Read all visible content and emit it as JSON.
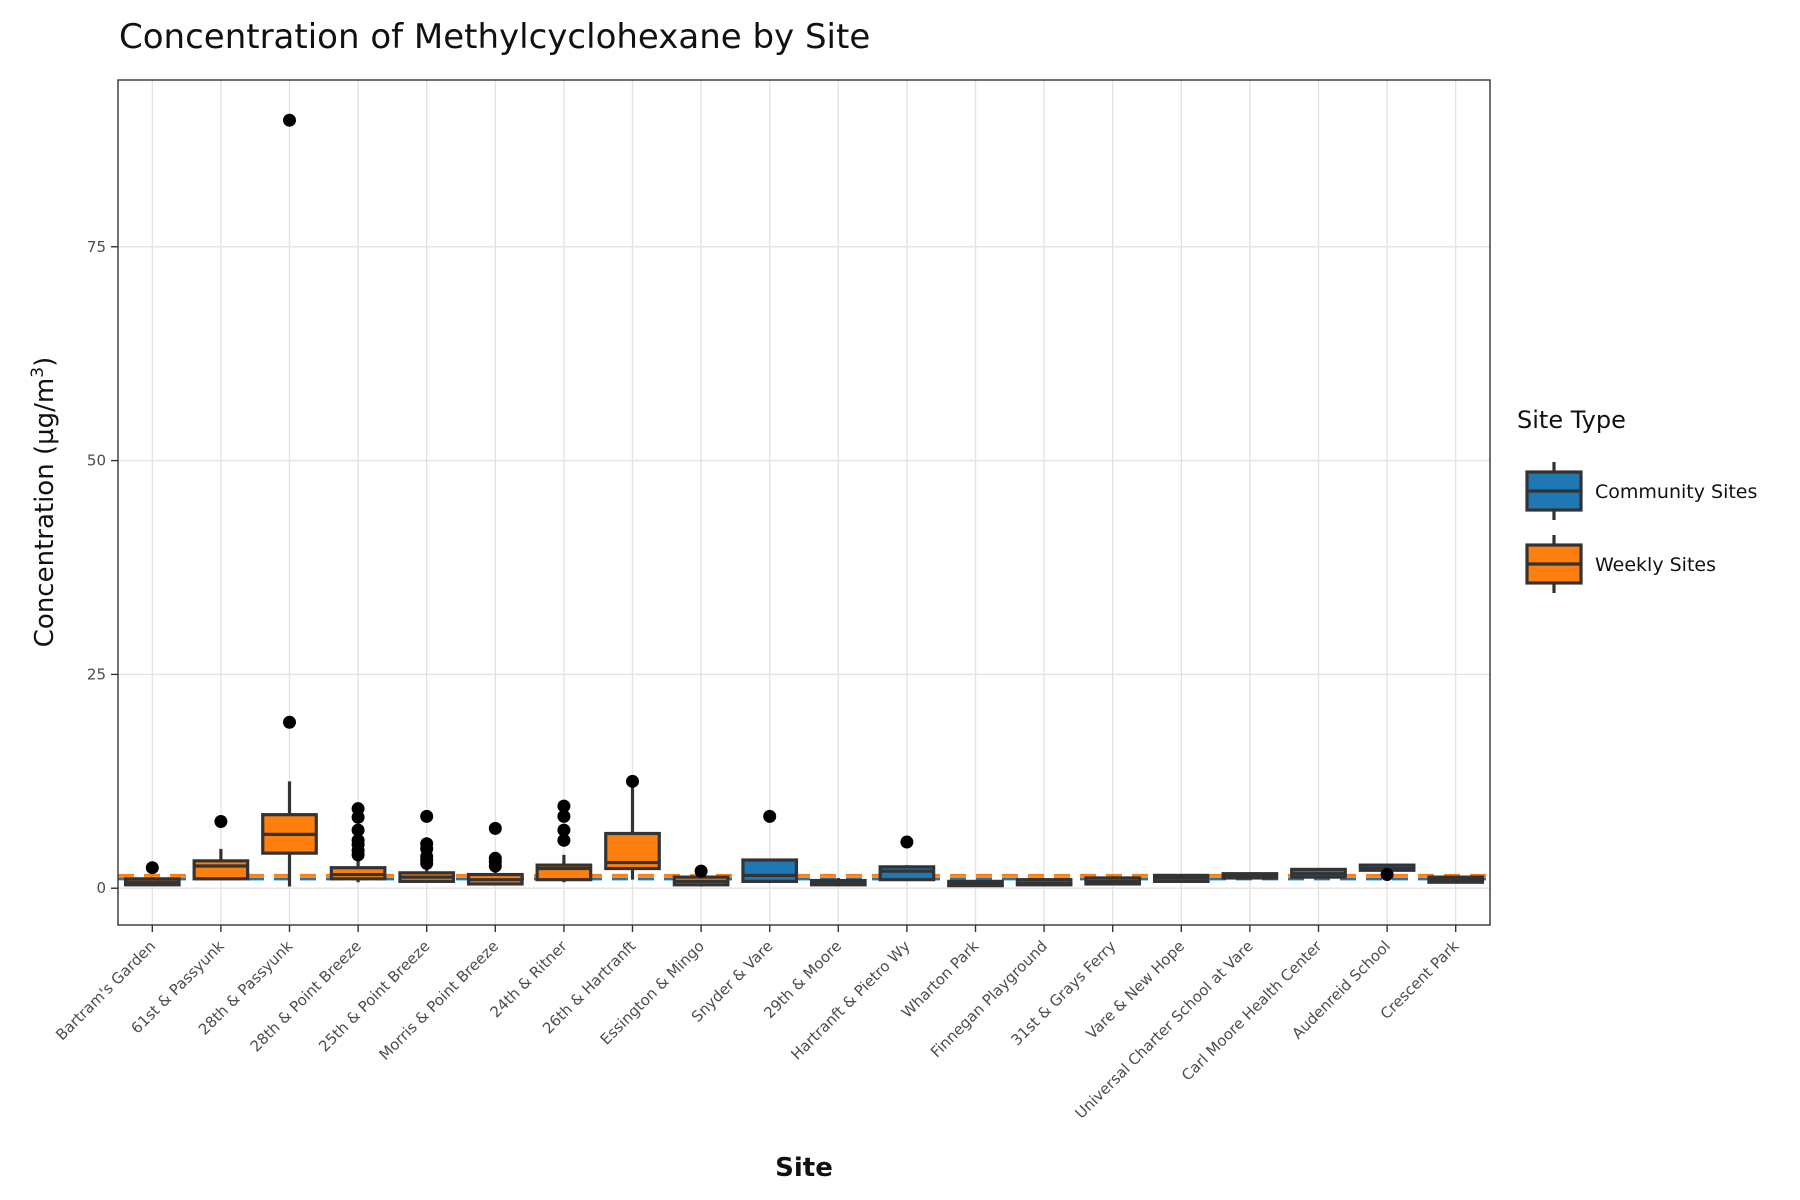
{
  "chart_data": {
    "type": "box",
    "title": "Concentration of Methylcyclohexane by Site",
    "xlabel": "Site",
    "ylabel_main": "Concentration (µg/m",
    "ylabel_sup": "3",
    "ylabel_close": ")",
    "ylim": [
      -4.3,
      94.5
    ],
    "yticks": [
      0,
      25,
      50,
      75
    ],
    "grid": true,
    "legend": {
      "title": "Site Type",
      "placement": "right",
      "entries": [
        {
          "label": "Community Sites",
          "color": "#1f77b4"
        },
        {
          "label": "Weekly Sites",
          "color": "#ff7f0e"
        }
      ]
    },
    "reference_lines": [
      {
        "series": "Weekly Sites",
        "value": 1.5,
        "color": "#ff7f0e",
        "style": "dashed"
      },
      {
        "series": "Community Sites",
        "value": 1.1,
        "color": "#1f77b4",
        "style": "dashed"
      }
    ],
    "categories": [
      "Bartram's Garden",
      "61st & Passyunk",
      "28th & Passyunk",
      "28th & Point Breeze",
      "25th & Point Breeze",
      "Morris & Point Breeze",
      "24th & Ritner",
      "26th & Hartranft",
      "Essington & Mingo",
      "Snyder & Vare",
      "29th & Moore",
      "Hartranft & Pietro Wy",
      "Wharton Park",
      "Finnegan Playground",
      "31st & Grays Ferry",
      "Vare & New Hope",
      "Universal Charter School at Vare",
      "Carl Moore Health Center",
      "Audenreid School",
      "Crescent Park"
    ],
    "boxes": [
      {
        "site": "Bartram's Garden",
        "type": "Weekly Sites",
        "min": 0.3,
        "q1": 0.4,
        "median": 0.7,
        "q3": 1.1,
        "max": 1.3,
        "outliers": [
          2.4
        ]
      },
      {
        "site": "61st & Passyunk",
        "type": "Weekly Sites",
        "min": 1.0,
        "q1": 1.1,
        "median": 2.6,
        "q3": 3.2,
        "max": 4.6,
        "outliers": [
          7.8
        ]
      },
      {
        "site": "28th & Passyunk",
        "type": "Weekly Sites",
        "min": 0.2,
        "q1": 4.1,
        "median": 6.3,
        "q3": 8.6,
        "max": 12.5,
        "outliers": [
          19.4,
          89.8
        ]
      },
      {
        "site": "28th & Point Breeze",
        "type": "Weekly Sites",
        "min": 0.7,
        "q1": 1.1,
        "median": 1.6,
        "q3": 2.4,
        "max": 3.2,
        "outliers": [
          3.9,
          4.4,
          5.1,
          5.6,
          6.8,
          8.3,
          9.3
        ]
      },
      {
        "site": "25th & Point Breeze",
        "type": "Weekly Sites",
        "min": 0.7,
        "q1": 0.8,
        "median": 1.3,
        "q3": 1.8,
        "max": 2.4,
        "outliers": [
          2.9,
          3.3,
          3.7,
          4.6,
          5.2,
          8.4
        ]
      },
      {
        "site": "Morris & Point Breeze",
        "type": "Weekly Sites",
        "min": 0.4,
        "q1": 0.5,
        "median": 1.0,
        "q3": 1.6,
        "max": 2.1,
        "outliers": [
          2.6,
          3.1,
          3.5,
          7.0
        ]
      },
      {
        "site": "24th & Ritner",
        "type": "Weekly Sites",
        "min": 0.7,
        "q1": 1.0,
        "median": 2.3,
        "q3": 2.7,
        "max": 3.9,
        "outliers": [
          5.6,
          6.8,
          8.4,
          9.6
        ]
      },
      {
        "site": "26th & Hartranft",
        "type": "Weekly Sites",
        "min": 1.0,
        "q1": 2.3,
        "median": 3.0,
        "q3": 6.4,
        "max": 12.0,
        "outliers": [
          12.5
        ]
      },
      {
        "site": "Essington & Mingo",
        "type": "Weekly Sites",
        "min": 0.2,
        "q1": 0.4,
        "median": 0.8,
        "q3": 1.3,
        "max": 1.6,
        "outliers": [
          2.0
        ]
      },
      {
        "site": "Snyder & Vare",
        "type": "Community Sites",
        "min": 0.6,
        "q1": 0.8,
        "median": 1.5,
        "q3": 3.3,
        "max": 3.4,
        "outliers": [
          8.4
        ]
      },
      {
        "site": "29th & Moore",
        "type": "Weekly Sites",
        "min": 0.3,
        "q1": 0.4,
        "median": 0.6,
        "q3": 0.9,
        "max": 1.2,
        "outliers": []
      },
      {
        "site": "Hartranft & Pietro Wy",
        "type": "Community Sites",
        "min": 0.9,
        "q1": 1.0,
        "median": 2.0,
        "q3": 2.5,
        "max": 2.7,
        "outliers": [
          5.4
        ]
      },
      {
        "site": "Wharton Park",
        "type": "Weekly Sites",
        "min": 0.2,
        "q1": 0.3,
        "median": 0.5,
        "q3": 0.8,
        "max": 0.9,
        "outliers": []
      },
      {
        "site": "Finnegan Playground",
        "type": "Weekly Sites",
        "min": 0.3,
        "q1": 0.4,
        "median": 0.6,
        "q3": 1.0,
        "max": 1.1,
        "outliers": []
      },
      {
        "site": "31st & Grays Ferry",
        "type": "Weekly Sites",
        "min": 0.4,
        "q1": 0.5,
        "median": 0.8,
        "q3": 1.2,
        "max": 1.4,
        "outliers": []
      },
      {
        "site": "Vare & New Hope",
        "type": "Community Sites",
        "min": 0.7,
        "q1": 0.8,
        "median": 1.2,
        "q3": 1.5,
        "max": 1.6,
        "outliers": []
      },
      {
        "site": "Universal Charter School at Vare",
        "type": "Community Sites",
        "min": 1.1,
        "q1": 1.2,
        "median": 1.4,
        "q3": 1.7,
        "max": 1.8,
        "outliers": []
      },
      {
        "site": "Carl Moore Health Center",
        "type": "Community Sites",
        "min": 1.2,
        "q1": 1.3,
        "median": 1.7,
        "q3": 2.2,
        "max": 2.3,
        "outliers": []
      },
      {
        "site": "Audenreid School",
        "type": "Community Sites",
        "min": 2.0,
        "q1": 2.1,
        "median": 2.3,
        "q3": 2.7,
        "max": 2.8,
        "outliers": [
          1.6
        ]
      },
      {
        "site": "Crescent Park",
        "type": "Weekly Sites",
        "min": 0.6,
        "q1": 0.7,
        "median": 1.0,
        "q3": 1.3,
        "max": 1.4,
        "outliers": []
      }
    ]
  }
}
